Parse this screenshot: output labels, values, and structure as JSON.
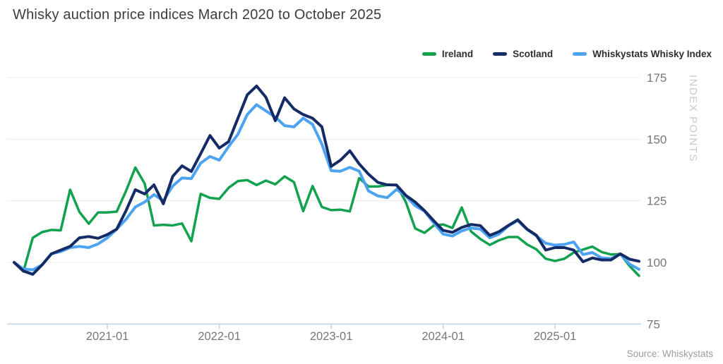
{
  "title": "Whisky auction price indices March 2020 to October 2025",
  "source_note": "Source: Whiskystats",
  "chart_data": {
    "type": "line",
    "title": "Whisky auction price indices March 2020 to October 2025",
    "xlabel": "",
    "ylabel": "INDEX POINTS",
    "x_start": "2020-03",
    "x_end": "2025-10",
    "n_points": 68,
    "x_interval": "monthly",
    "ylim": [
      75,
      175
    ],
    "grid": "horizontal",
    "legend_position": "top-right",
    "yticks": [
      175,
      150,
      125,
      100,
      75
    ],
    "xticks": [
      {
        "label": "2021-01",
        "month_index": 10
      },
      {
        "label": "2022-01",
        "month_index": 22
      },
      {
        "label": "2023-01",
        "month_index": 34
      },
      {
        "label": "2024-01",
        "month_index": 46
      },
      {
        "label": "2025-01",
        "month_index": 58
      }
    ],
    "series": [
      {
        "name": "Ireland",
        "color": "#12A14F",
        "width": 3.5,
        "values": [
          100,
          96.3,
          110,
          112.3,
          113.2,
          113,
          129.5,
          120.5,
          115.7,
          120.3,
          120.3,
          120.6,
          129,
          138.5,
          132,
          115,
          115.3,
          115,
          115.8,
          108.6,
          127.8,
          126.2,
          125.8,
          130.3,
          133,
          133.4,
          131.4,
          133.2,
          131.7,
          134.9,
          132.6,
          120.8,
          131,
          122.5,
          121.2,
          121.4,
          120.7,
          134.2,
          130.8,
          130.8,
          131.4,
          131.4,
          124.5,
          113.8,
          112,
          115,
          115.4,
          114,
          122.3,
          112.5,
          109.5,
          107.1,
          109,
          110.3,
          110.3,
          107.3,
          105.3,
          101.5,
          100.6,
          101.5,
          104,
          105.2,
          106.4,
          104.2,
          103.2,
          103.4,
          98.5,
          94.6
        ]
      },
      {
        "name": "Scotland",
        "color": "#152B66",
        "width": 4,
        "values": [
          100,
          96.5,
          95.2,
          99,
          103.5,
          105,
          106.5,
          110,
          110.5,
          109.8,
          111.3,
          113.5,
          121,
          129.5,
          127.8,
          131.5,
          123.8,
          134.9,
          139.2,
          136.9,
          144.1,
          151.5,
          146.4,
          149,
          158.5,
          168,
          171.6,
          167,
          157.5,
          166.8,
          162.3,
          160,
          158.5,
          155,
          139,
          141.5,
          145.3,
          140,
          135.8,
          132.5,
          131.5,
          131.4,
          127.2,
          124.5,
          121,
          116.9,
          113,
          112.2,
          114.2,
          115.4,
          114.9,
          111,
          112.5,
          115,
          117.3,
          113.5,
          111,
          105,
          106,
          106,
          105,
          100.3,
          101.8,
          101,
          101,
          103.5,
          101.3,
          100.5
        ]
      },
      {
        "name": "Whiskystats Whisky Index",
        "color": "#4BA3F2",
        "width": 4,
        "values": [
          100,
          97.3,
          97,
          99,
          103.5,
          104.4,
          106,
          106.5,
          106,
          107.5,
          110,
          113.5,
          117.5,
          122.5,
          124.5,
          127.5,
          125,
          131,
          134.3,
          134,
          140.3,
          143,
          141.5,
          147,
          152,
          160,
          164,
          161.5,
          159,
          155.5,
          155,
          158.5,
          156,
          148,
          137.2,
          137,
          138.6,
          137,
          129,
          127,
          126.3,
          129.6,
          127,
          123,
          120.8,
          116,
          111.5,
          110.7,
          112.8,
          114,
          113.5,
          110,
          111.5,
          114.8,
          117,
          113.3,
          110.8,
          107.8,
          107,
          107.3,
          108.3,
          103.2,
          104,
          101.8,
          101.6,
          103.4,
          99.3,
          97.2
        ]
      }
    ],
    "colors": {
      "grid": "#ececec",
      "axis_line": "#bcd2ea",
      "tick_label": "#76767b",
      "axis_title": "#c9c9ce"
    }
  }
}
